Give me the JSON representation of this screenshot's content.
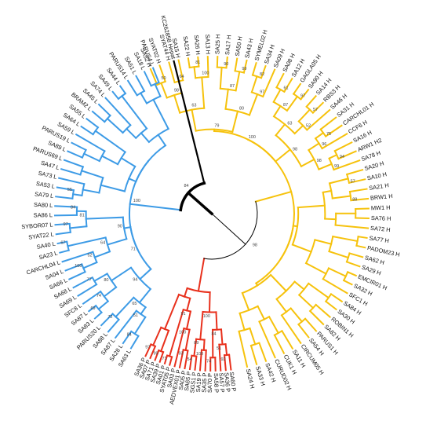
{
  "diagram": {
    "type": "circular-phylogenetic-tree",
    "colors": {
      "H": "#f6c20c",
      "L": "#3d9be6",
      "P": "#e8301c",
      "outgroup": "#000000",
      "label": "#111111",
      "support": "#444444"
    },
    "clades": [
      {
        "group": "H",
        "support_labels": [
          "50",
          "64",
          "98",
          "81",
          "100",
          "63",
          "90",
          "99",
          "87",
          "82",
          "97",
          "80",
          "79",
          "61",
          "97",
          "87",
          "57",
          "52",
          "63",
          "75",
          "96",
          "94",
          "99",
          "98",
          "98",
          "100",
          "57",
          "88"
        ],
        "tips": [
          "SA52 H",
          "SYAT02 H",
          "SYAT44 H",
          "SA15 H",
          "SA22 H",
          "SA26 H",
          "SA13 H",
          "SA25 H",
          "SA17 H",
          "SA50 H",
          "SA43 H",
          "SYMEL02 H",
          "SA34 H",
          "SA09 H",
          "SA08 H",
          "SA12 H",
          "GAGLA05 H",
          "SA90 H",
          "SA14 H",
          "RBS3 H",
          "SA46 H",
          "SA31 H",
          "CARCHL01 H",
          "CCF6 H",
          "SA16 H",
          "ARW1 H2",
          "SA78 H",
          "SA20 H",
          "SA10 H",
          "SA21 H",
          "BRW1 H",
          "MW1 H",
          "SA76 H",
          "SA72 H",
          "SA77 H",
          "PADOM23 H",
          "SA62 H",
          "SA29 H",
          "EMCIR01 H",
          "SA32 H",
          "SFC1 H",
          "SA84 H",
          "SA30 H",
          "ROBIN1 H",
          "SA82 H",
          "PARUS1 H",
          "SA54 H",
          "CIRCUM05 H",
          "SA11 H",
          "CUK1 H",
          "CURUD02 H",
          "SA42 H",
          "SA33 H",
          "SA24 H"
        ]
      },
      {
        "group": "P",
        "support_labels": [
          "92",
          "51",
          "74",
          "84",
          "100",
          "54",
          "89",
          "100",
          "93",
          "100",
          "71",
          "91",
          "99",
          "97"
        ],
        "tips": [
          "SA60 P",
          "SA36 P",
          "SA57 P",
          "SA58 P",
          "SA70 P",
          "SA35 P",
          "SA19 P",
          "SGS1 P",
          "SA65 P",
          "SA05 P",
          "AEDVEX01 P",
          "SA03 P",
          "SYAT05 P",
          "SA01 P",
          "SA39 P",
          "SA71 P",
          "SA07 P",
          "SA36 P"
        ]
      },
      {
        "group": "L",
        "support_labels": [
          "84",
          "51",
          "72",
          "65",
          "69",
          "74",
          "77",
          "80",
          "94",
          "100",
          "52",
          "67",
          "64",
          "97",
          "84",
          "81",
          "90",
          "71",
          "55"
        ],
        "tips": [
          "SA63 L",
          "SA28 L",
          "SA87 L",
          "SA88 L",
          "PARUS20 L",
          "SA83 L",
          "SA87 L",
          "SFC8 L",
          "SA69 L",
          "SA68 L",
          "SA66 L",
          "SA04 L",
          "CARCHL04 L",
          "SA23 L",
          "SA40 L",
          "SYAT22 L",
          "SYBOR07 L",
          "SA86 L",
          "SA80 L",
          "SA79 L",
          "SA53 L",
          "SA73 L",
          "SA47 L",
          "PARUS69 L",
          "SA89 L",
          "PARUS19 L",
          "SA59 L",
          "SA64 L",
          "SA55 L",
          "BRAM2 L",
          "SA45 L",
          "SA74 L",
          "SA49 L",
          "SA44 L",
          "PARUS14 L",
          "SA51 L",
          "SA18 L",
          "PARUS4 L"
        ]
      },
      {
        "group": "outgroup",
        "tips": [
          "KC262858 Hepat"
        ]
      }
    ],
    "root_support": "84",
    "root_support_L": "100",
    "root_support_H": "98"
  }
}
